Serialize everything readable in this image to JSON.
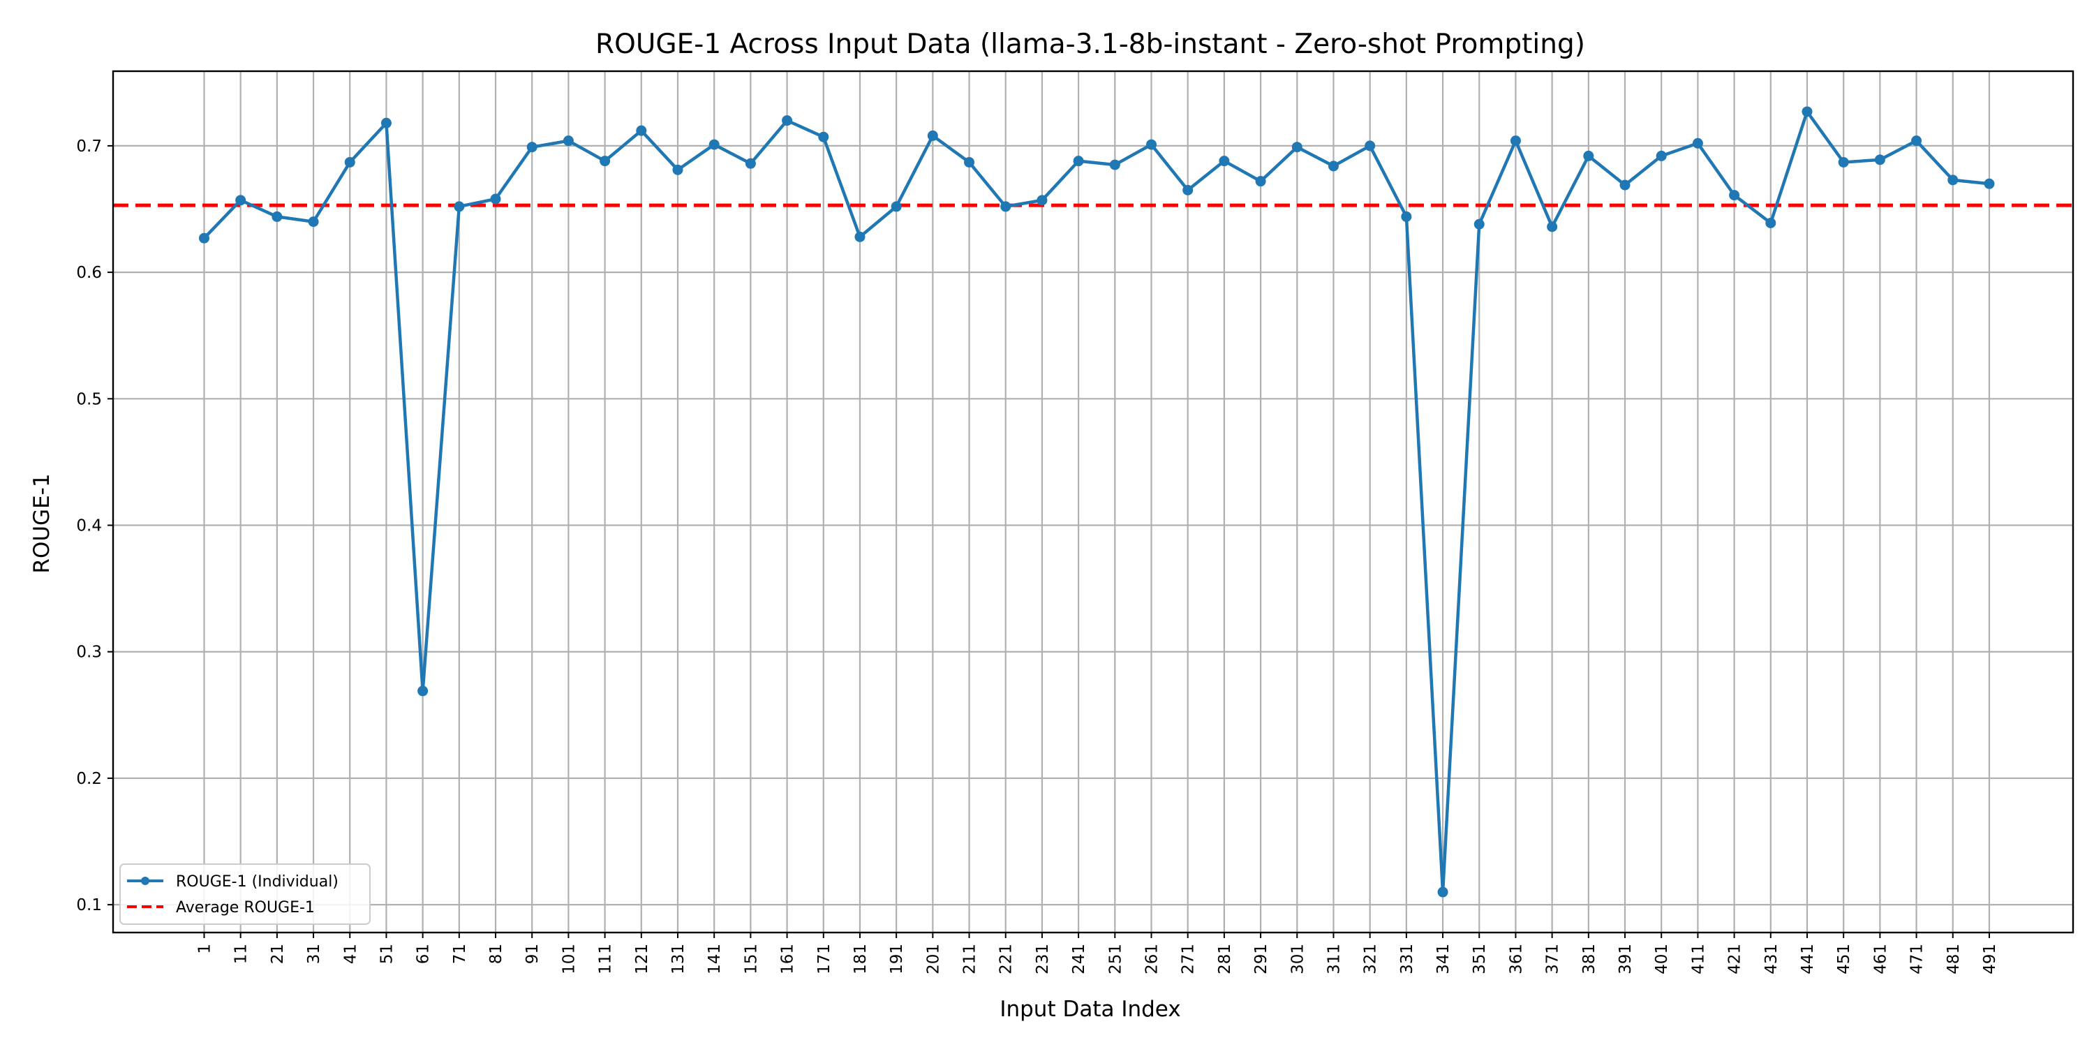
{
  "chart_data": {
    "type": "line",
    "title": "ROUGE-1 Across Input Data (llama-3.1-8b-instant - Zero-shot Prompting)",
    "xlabel": "Input Data Index",
    "ylabel": "ROUGE-1",
    "x": [
      1,
      11,
      21,
      31,
      41,
      51,
      61,
      71,
      81,
      91,
      101,
      111,
      121,
      131,
      141,
      151,
      161,
      171,
      181,
      191,
      201,
      211,
      221,
      231,
      241,
      251,
      261,
      271,
      281,
      291,
      301,
      311,
      321,
      331,
      341,
      351,
      361,
      371,
      381,
      391,
      401,
      411,
      421,
      431,
      441,
      451,
      461,
      471,
      481,
      491
    ],
    "xlim": [
      -24,
      514
    ],
    "ylim": [
      0.078,
      0.759
    ],
    "yticks": [
      0.1,
      0.2,
      0.3,
      0.4,
      0.5,
      0.6,
      0.7
    ],
    "grid": true,
    "legend_position": "lower-left",
    "series": [
      {
        "name": "ROUGE-1 (Individual)",
        "color": "#1f77b4",
        "style": "solid-with-markers",
        "values": [
          0.627,
          0.657,
          0.644,
          0.64,
          0.687,
          0.718,
          0.269,
          0.652,
          0.658,
          0.699,
          0.704,
          0.688,
          0.712,
          0.681,
          0.701,
          0.686,
          0.72,
          0.707,
          0.628,
          0.652,
          0.708,
          0.687,
          0.652,
          0.657,
          0.688,
          0.685,
          0.701,
          0.665,
          0.688,
          0.672,
          0.699,
          0.684,
          0.7,
          0.644,
          0.11,
          0.638,
          0.704,
          0.636,
          0.692,
          0.669,
          0.692,
          0.702,
          0.661,
          0.639,
          0.727,
          0.687,
          0.689,
          0.704,
          0.673,
          0.67
        ]
      }
    ],
    "reference_lines": [
      {
        "name": "Average ROUGE-1",
        "color": "#ff0000",
        "style": "dashed",
        "y": 0.653
      }
    ]
  }
}
